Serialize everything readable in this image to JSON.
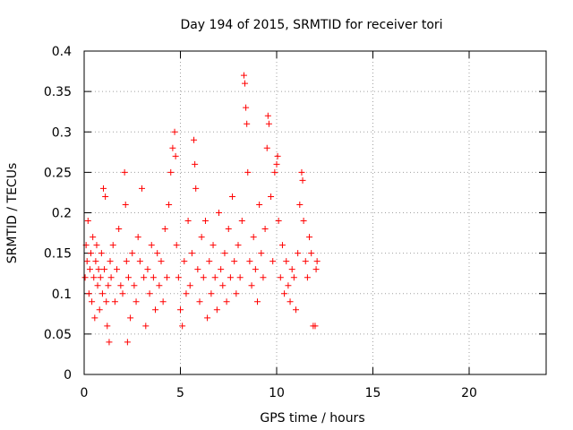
{
  "chart_data": {
    "type": "scatter",
    "title": "Day 194 of 2015, SRMTID for receiver tori",
    "xlabel": "GPS time / hours",
    "ylabel": "SRMTID / TECUs",
    "xlim": [
      0,
      24
    ],
    "ylim": [
      0,
      0.4
    ],
    "x_ticks": [
      0,
      5,
      10,
      15,
      20
    ],
    "x_tick_labels": [
      "0",
      "5",
      "10",
      "15",
      "20"
    ],
    "y_ticks": [
      0,
      0.05,
      0.1,
      0.15,
      0.2,
      0.25,
      0.3,
      0.35,
      0.4
    ],
    "y_tick_labels": [
      "0",
      "0.05",
      "0.1",
      "0.15",
      "0.2",
      "0.25",
      "0.3",
      "0.35",
      "0.4"
    ],
    "grid": true,
    "marker": "+",
    "color": "#ff0000",
    "points": [
      [
        0.05,
        0.12
      ],
      [
        0.1,
        0.16
      ],
      [
        0.15,
        0.14
      ],
      [
        0.2,
        0.19
      ],
      [
        0.25,
        0.1
      ],
      [
        0.3,
        0.13
      ],
      [
        0.35,
        0.15
      ],
      [
        0.4,
        0.09
      ],
      [
        0.45,
        0.17
      ],
      [
        0.5,
        0.12
      ],
      [
        0.55,
        0.07
      ],
      [
        0.6,
        0.14
      ],
      [
        0.65,
        0.16
      ],
      [
        0.7,
        0.11
      ],
      [
        0.75,
        0.13
      ],
      [
        0.8,
        0.08
      ],
      [
        0.85,
        0.12
      ],
      [
        0.9,
        0.15
      ],
      [
        0.95,
        0.1
      ],
      [
        1.0,
        0.23
      ],
      [
        1.05,
        0.13
      ],
      [
        1.1,
        0.22
      ],
      [
        1.15,
        0.09
      ],
      [
        1.2,
        0.06
      ],
      [
        1.25,
        0.11
      ],
      [
        1.3,
        0.04
      ],
      [
        1.35,
        0.14
      ],
      [
        1.4,
        0.12
      ],
      [
        1.5,
        0.16
      ],
      [
        1.6,
        0.09
      ],
      [
        1.7,
        0.13
      ],
      [
        1.8,
        0.18
      ],
      [
        1.9,
        0.11
      ],
      [
        2.0,
        0.1
      ],
      [
        2.1,
        0.25
      ],
      [
        2.15,
        0.21
      ],
      [
        2.2,
        0.14
      ],
      [
        2.25,
        0.04
      ],
      [
        2.3,
        0.12
      ],
      [
        2.4,
        0.07
      ],
      [
        2.5,
        0.15
      ],
      [
        2.6,
        0.11
      ],
      [
        2.7,
        0.09
      ],
      [
        2.8,
        0.17
      ],
      [
        2.9,
        0.14
      ],
      [
        3.0,
        0.23
      ],
      [
        3.1,
        0.12
      ],
      [
        3.2,
        0.06
      ],
      [
        3.3,
        0.13
      ],
      [
        3.4,
        0.1
      ],
      [
        3.5,
        0.16
      ],
      [
        3.6,
        0.12
      ],
      [
        3.7,
        0.08
      ],
      [
        3.8,
        0.15
      ],
      [
        3.9,
        0.11
      ],
      [
        4.0,
        0.14
      ],
      [
        4.1,
        0.09
      ],
      [
        4.2,
        0.18
      ],
      [
        4.3,
        0.12
      ],
      [
        4.4,
        0.21
      ],
      [
        4.5,
        0.25
      ],
      [
        4.6,
        0.28
      ],
      [
        4.7,
        0.3
      ],
      [
        4.75,
        0.27
      ],
      [
        4.8,
        0.16
      ],
      [
        4.9,
        0.12
      ],
      [
        5.0,
        0.08
      ],
      [
        5.1,
        0.06
      ],
      [
        5.2,
        0.14
      ],
      [
        5.3,
        0.1
      ],
      [
        5.4,
        0.19
      ],
      [
        5.5,
        0.11
      ],
      [
        5.6,
        0.15
      ],
      [
        5.7,
        0.29
      ],
      [
        5.75,
        0.26
      ],
      [
        5.8,
        0.23
      ],
      [
        5.9,
        0.13
      ],
      [
        6.0,
        0.09
      ],
      [
        6.1,
        0.17
      ],
      [
        6.2,
        0.12
      ],
      [
        6.3,
        0.19
      ],
      [
        6.4,
        0.07
      ],
      [
        6.5,
        0.14
      ],
      [
        6.6,
        0.1
      ],
      [
        6.7,
        0.16
      ],
      [
        6.8,
        0.12
      ],
      [
        6.9,
        0.08
      ],
      [
        7.0,
        0.2
      ],
      [
        7.1,
        0.13
      ],
      [
        7.2,
        0.11
      ],
      [
        7.3,
        0.15
      ],
      [
        7.4,
        0.09
      ],
      [
        7.5,
        0.18
      ],
      [
        7.6,
        0.12
      ],
      [
        7.7,
        0.22
      ],
      [
        7.8,
        0.14
      ],
      [
        7.9,
        0.1
      ],
      [
        8.0,
        0.16
      ],
      [
        8.1,
        0.12
      ],
      [
        8.2,
        0.19
      ],
      [
        8.3,
        0.37
      ],
      [
        8.35,
        0.36
      ],
      [
        8.4,
        0.33
      ],
      [
        8.45,
        0.31
      ],
      [
        8.5,
        0.25
      ],
      [
        8.6,
        0.14
      ],
      [
        8.7,
        0.11
      ],
      [
        8.8,
        0.17
      ],
      [
        8.9,
        0.13
      ],
      [
        9.0,
        0.09
      ],
      [
        9.1,
        0.21
      ],
      [
        9.2,
        0.15
      ],
      [
        9.3,
        0.12
      ],
      [
        9.4,
        0.18
      ],
      [
        9.5,
        0.28
      ],
      [
        9.55,
        0.32
      ],
      [
        9.6,
        0.31
      ],
      [
        9.7,
        0.22
      ],
      [
        9.8,
        0.14
      ],
      [
        9.9,
        0.25
      ],
      [
        10.0,
        0.26
      ],
      [
        10.05,
        0.27
      ],
      [
        10.1,
        0.19
      ],
      [
        10.2,
        0.12
      ],
      [
        10.3,
        0.16
      ],
      [
        10.4,
        0.1
      ],
      [
        10.5,
        0.14
      ],
      [
        10.6,
        0.11
      ],
      [
        10.7,
        0.09
      ],
      [
        10.8,
        0.13
      ],
      [
        10.9,
        0.12
      ],
      [
        11.0,
        0.08
      ],
      [
        11.1,
        0.15
      ],
      [
        11.2,
        0.21
      ],
      [
        11.3,
        0.25
      ],
      [
        11.35,
        0.24
      ],
      [
        11.4,
        0.19
      ],
      [
        11.5,
        0.14
      ],
      [
        11.6,
        0.12
      ],
      [
        11.7,
        0.17
      ],
      [
        11.8,
        0.15
      ],
      [
        11.9,
        0.06
      ],
      [
        12.0,
        0.06
      ],
      [
        12.05,
        0.13
      ],
      [
        12.1,
        0.14
      ]
    ]
  }
}
